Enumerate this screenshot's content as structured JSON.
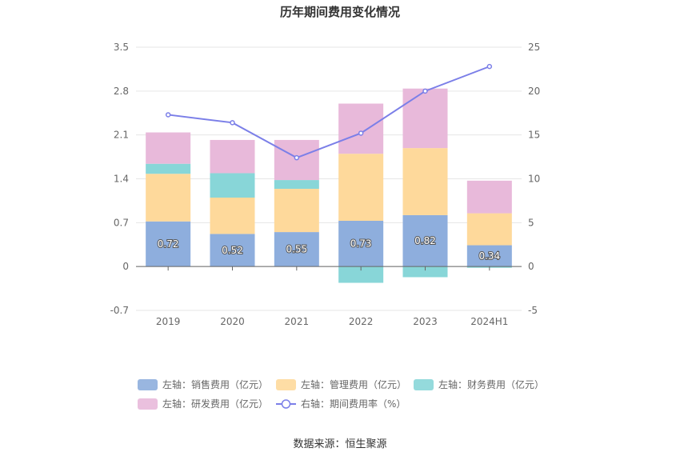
{
  "chart_data": {
    "type": "bar",
    "title": "历年期间费用变化情况",
    "categories": [
      "2019",
      "2020",
      "2021",
      "2022",
      "2023",
      "2024H1"
    ],
    "stacked": true,
    "y_left": {
      "min": -0.7,
      "max": 3.5,
      "ticks": [
        "3.5",
        "2.8",
        "2.1",
        "1.4",
        "0.7",
        "0",
        "-0.7"
      ]
    },
    "y_right": {
      "min": -5,
      "max": 25,
      "ticks": [
        "25",
        "20",
        "15",
        "10",
        "5",
        "0",
        "-5"
      ]
    },
    "series": [
      {
        "name": "左轴：销售费用（亿元）",
        "type": "bar",
        "axis": "left",
        "color": "#8eaedd",
        "values": [
          0.72,
          0.52,
          0.55,
          0.73,
          0.82,
          0.34
        ],
        "labels": [
          "0.72",
          "0.52",
          "0.55",
          "0.73",
          "0.82",
          "0.34"
        ]
      },
      {
        "name": "左轴：管理费用（亿元）",
        "type": "bar",
        "axis": "left",
        "color": "#fed99b",
        "values": [
          0.76,
          0.58,
          0.69,
          1.07,
          1.07,
          0.51
        ]
      },
      {
        "name": "左轴：财务费用（亿元）",
        "type": "bar",
        "axis": "left",
        "color": "#88d6d8",
        "values": [
          0.16,
          0.39,
          0.14,
          -0.26,
          -0.17,
          -0.02
        ]
      },
      {
        "name": "左轴：研发费用（亿元）",
        "type": "bar",
        "axis": "left",
        "color": "#e8b9da",
        "values": [
          0.5,
          0.53,
          0.64,
          0.8,
          0.95,
          0.52
        ]
      },
      {
        "name": "右轴：期间费用率（%）",
        "type": "line",
        "axis": "right",
        "color": "#7b7fe8",
        "values": [
          17.3,
          16.4,
          12.4,
          15.2,
          20.0,
          22.8
        ]
      }
    ],
    "legend_position": "bottom",
    "grid": true
  },
  "source": "数据来源：恒生聚源"
}
